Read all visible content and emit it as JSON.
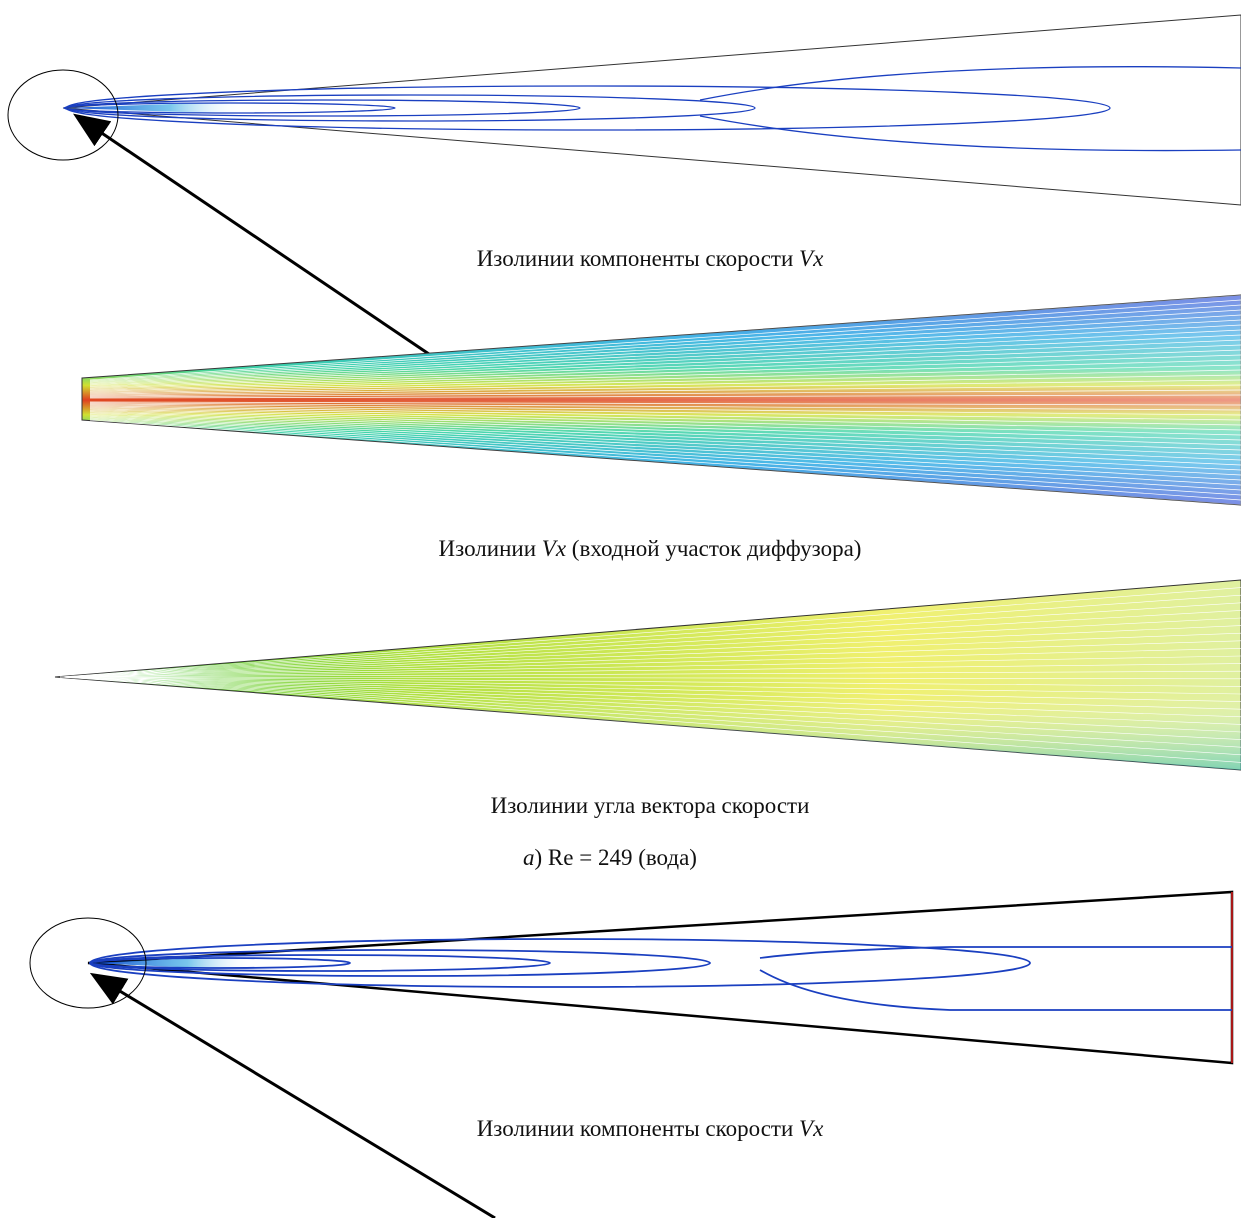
{
  "panels": [
    {
      "caption": {
        "text": "Изолинии компоненты скорости",
        "symbol": "Vx"
      }
    },
    {
      "caption": {
        "text": "Изолинии",
        "symbol": "Vx",
        "suffix": "(входной участок диффузора)"
      }
    },
    {
      "caption": {
        "text": "Изолинии угла вектора скорости"
      }
    },
    {
      "caption": {
        "text": "Изолинии компоненты скорости",
        "symbol": "Vx"
      }
    }
  ],
  "group_label": {
    "letter": "a",
    "rest": ") Re = 249 (вода)"
  }
}
